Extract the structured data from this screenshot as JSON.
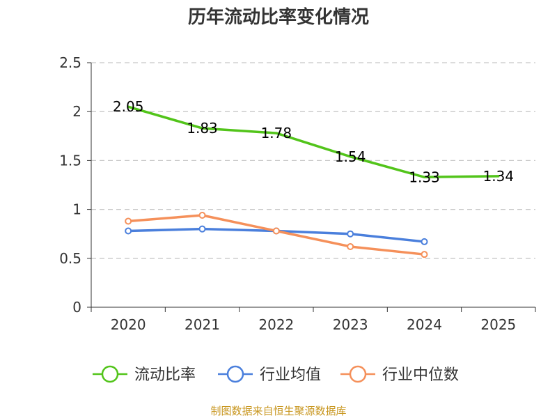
{
  "chart_data": {
    "type": "line",
    "title": "历年流动比率变化情况",
    "categories": [
      "2020",
      "2021",
      "2022",
      "2023",
      "2024",
      "2025"
    ],
    "ylim": [
      0,
      2.5
    ],
    "yticks": [
      "0",
      "0.5",
      "1",
      "1.5",
      "2",
      "2.5"
    ],
    "grid": true,
    "legend_position": "bottom",
    "series": [
      {
        "name": "流动比率",
        "color": "#52c41a",
        "values": [
          2.05,
          1.83,
          1.78,
          1.54,
          1.33,
          1.34
        ],
        "labels": [
          "2.05",
          "1.83",
          "1.78",
          "1.54",
          "1.33",
          "1.34"
        ],
        "show_markers": false
      },
      {
        "name": "行业均值",
        "color": "#4a7fdc",
        "values": [
          0.78,
          0.8,
          0.78,
          0.75,
          0.67,
          null
        ],
        "show_markers": true
      },
      {
        "name": "行业中位数",
        "color": "#f5905a",
        "values": [
          0.88,
          0.94,
          0.78,
          0.62,
          0.54,
          null
        ],
        "show_markers": true
      }
    ]
  },
  "source_note": "制图数据来自恒生聚源数据库"
}
